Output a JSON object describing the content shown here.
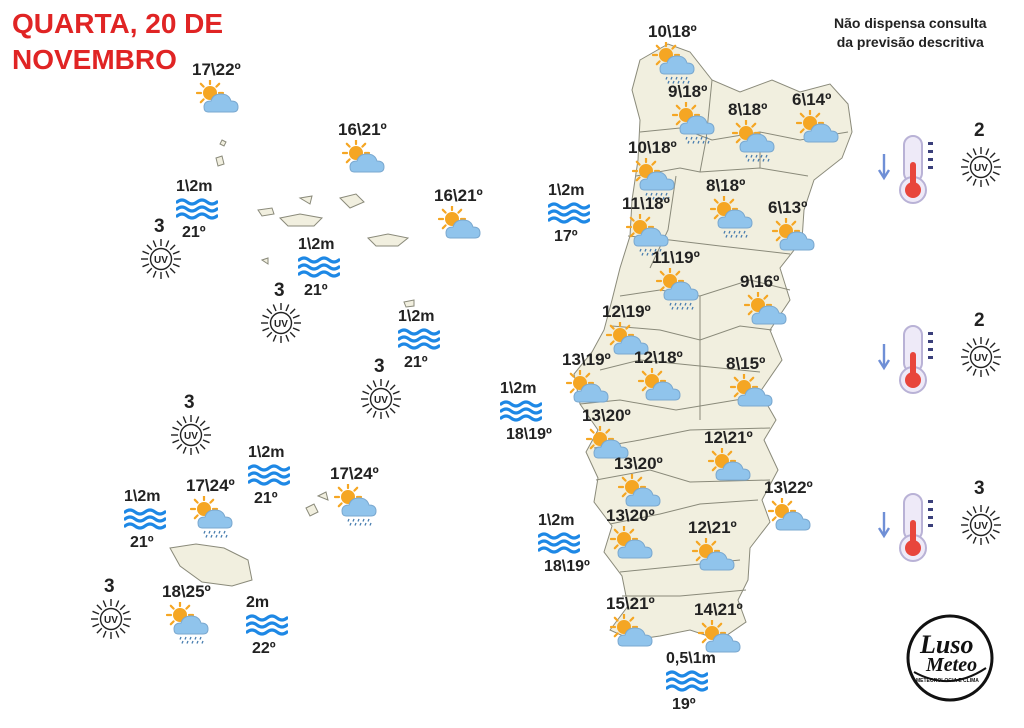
{
  "header": {
    "title_line1": "QUARTA, 20 DE",
    "title_line2": "NOVEMBRO",
    "note_line1": "Não dispensa consulta",
    "note_line2": "da previsão descritiva"
  },
  "brand": {
    "name_line1": "Luso",
    "name_line2": "Meteo",
    "tagline": "METEOROLOGIA E CLIMA"
  },
  "icons": {
    "partly_cloudy": "sun-behind-cloud-icon",
    "showers": "sun-cloud-rain-icon",
    "waves": "sea-waves-icon",
    "uv": "uv-sun-icon",
    "thermometer": "thermometer-falling-icon"
  },
  "colors": {
    "title": "#e02424",
    "waves": "#1e88e5",
    "cloud": "#90c4ec",
    "sun": "#f5a623",
    "land": "#f1efdf"
  },
  "azores": {
    "temps": [
      {
        "label": "17\\22º",
        "icon": "partly_cloudy"
      },
      {
        "label": "16\\21º",
        "icon": "partly_cloudy"
      },
      {
        "label": "16\\21º",
        "icon": "partly_cloudy"
      }
    ],
    "sea": [
      {
        "wave": "1\\2m",
        "temp": "21º"
      },
      {
        "wave": "1\\2m",
        "temp": "21º"
      },
      {
        "wave": "1\\2m",
        "temp": "21º"
      }
    ],
    "uv": [
      "3",
      "3",
      "3"
    ]
  },
  "madeira": {
    "temps": [
      {
        "label": "17\\24º",
        "icon": "showers"
      },
      {
        "label": "17\\24º",
        "icon": "showers"
      },
      {
        "label": "18\\25º",
        "icon": "showers"
      }
    ],
    "sea": [
      {
        "wave": "1\\2m",
        "temp": "21º"
      },
      {
        "wave": "1\\2m",
        "temp": "21º"
      },
      {
        "wave": "2m",
        "temp": "22º"
      }
    ],
    "uv": [
      "3",
      "3"
    ]
  },
  "mainland_sea": [
    {
      "wave": "1\\2m",
      "temp": "17º"
    },
    {
      "wave": "1\\2m",
      "temp": "18\\19º"
    },
    {
      "wave": "1\\2m",
      "temp": "18\\19º"
    },
    {
      "wave": "0,5\\1m",
      "temp": "19º"
    }
  ],
  "mainland": [
    {
      "label": "10\\18º",
      "icon": "showers"
    },
    {
      "label": "9\\18º",
      "icon": "showers"
    },
    {
      "label": "8\\18º",
      "icon": "showers"
    },
    {
      "label": "6\\14º",
      "icon": "partly_cloudy"
    },
    {
      "label": "10\\18º",
      "icon": "showers"
    },
    {
      "label": "11\\18º",
      "icon": "showers"
    },
    {
      "label": "8\\18º",
      "icon": "showers"
    },
    {
      "label": "6\\13º",
      "icon": "partly_cloudy"
    },
    {
      "label": "11\\19º",
      "icon": "showers"
    },
    {
      "label": "9\\16º",
      "icon": "partly_cloudy"
    },
    {
      "label": "12\\19º",
      "icon": "partly_cloudy"
    },
    {
      "label": "13\\19º",
      "icon": "partly_cloudy"
    },
    {
      "label": "12\\18º",
      "icon": "partly_cloudy"
    },
    {
      "label": "8\\15º",
      "icon": "partly_cloudy"
    },
    {
      "label": "13\\20º",
      "icon": "partly_cloudy"
    },
    {
      "label": "12\\21º",
      "icon": "partly_cloudy"
    },
    {
      "label": "13\\20º",
      "icon": "partly_cloudy"
    },
    {
      "label": "13\\22º",
      "icon": "partly_cloudy"
    },
    {
      "label": "13\\20º",
      "icon": "partly_cloudy"
    },
    {
      "label": "12\\21º",
      "icon": "partly_cloudy"
    },
    {
      "label": "15\\21º",
      "icon": "partly_cloudy"
    },
    {
      "label": "14\\21º",
      "icon": "partly_cloudy"
    }
  ],
  "side_panel": [
    {
      "uv": "2",
      "trend": "falling"
    },
    {
      "uv": "2",
      "trend": "falling"
    },
    {
      "uv": "3",
      "trend": "falling"
    }
  ]
}
